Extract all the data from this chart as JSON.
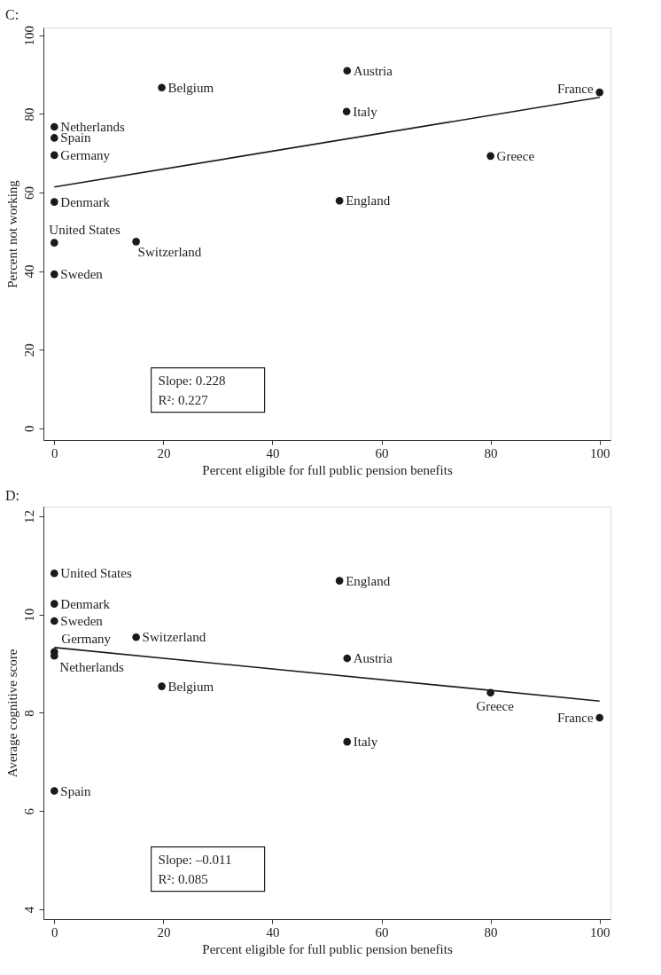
{
  "chart_data": [
    {
      "type": "scatter",
      "title": "C:",
      "xlabel": "Percent eligible for full public pension benefits",
      "ylabel": "Percent not working",
      "xlim": [
        -2,
        102
      ],
      "ylim": [
        -3,
        102
      ],
      "xticks": [
        0,
        20,
        40,
        60,
        80,
        100
      ],
      "yticks": [
        0,
        20,
        40,
        60,
        80,
        100
      ],
      "grid": false,
      "series": [
        {
          "marker": "circle",
          "color": "#1a1a1a",
          "x": [
            19.7,
            0,
            0,
            0,
            0,
            0,
            15.0,
            0,
            53.7,
            53.6,
            100,
            80.0,
            52.3
          ],
          "values": [
            86.7,
            76.7,
            73.9,
            69.5,
            57.6,
            47.2,
            47.5,
            39.2,
            91.0,
            80.6,
            85.5,
            69.3,
            57.9
          ],
          "value_labels": [
            "Belgium",
            "Netherlands",
            "Spain",
            "Germany",
            "Denmark",
            "United States",
            "Switzerland",
            "Sweden",
            "Austria",
            "Italy",
            "France",
            "Greece",
            "England"
          ]
        },
        {
          "type": "line",
          "line_style": "solid",
          "color": "#1a1a1a",
          "x": [
            0,
            100
          ],
          "values": [
            61.4,
            84.2
          ]
        }
      ],
      "annotations": [
        "Slope: 0.228",
        "R²: 0.227"
      ]
    },
    {
      "type": "scatter",
      "title": "D:",
      "xlabel": "Percent eligible for full public pension benefits",
      "ylabel": "Average cognitive score",
      "xlim": [
        -2,
        102
      ],
      "ylim": [
        3.8,
        12.2
      ],
      "xticks": [
        0,
        20,
        40,
        60,
        80,
        100
      ],
      "yticks": [
        4,
        6,
        8,
        10,
        12
      ],
      "grid": false,
      "series": [
        {
          "marker": "circle",
          "color": "#1a1a1a",
          "x": [
            0,
            0,
            0,
            15.0,
            0,
            0,
            0,
            19.7,
            52.3,
            53.7,
            80.0,
            100,
            53.7
          ],
          "values": [
            10.84,
            10.22,
            9.87,
            9.54,
            9.24,
            9.16,
            6.41,
            8.54,
            10.69,
            9.11,
            8.41,
            7.9,
            7.41
          ],
          "value_labels": [
            "United States",
            "Denmark",
            "Sweden",
            "Switzerland",
            "Germany",
            "Netherlands",
            "Spain",
            "Belgium",
            "England",
            "Austria",
            "Greece",
            "France",
            "Italy"
          ]
        },
        {
          "type": "line",
          "line_style": "solid",
          "color": "#1a1a1a",
          "x": [
            0,
            100
          ],
          "values": [
            9.33,
            8.24
          ]
        }
      ],
      "annotations": [
        "Slope: –0.011",
        "R²: 0.085"
      ]
    }
  ]
}
